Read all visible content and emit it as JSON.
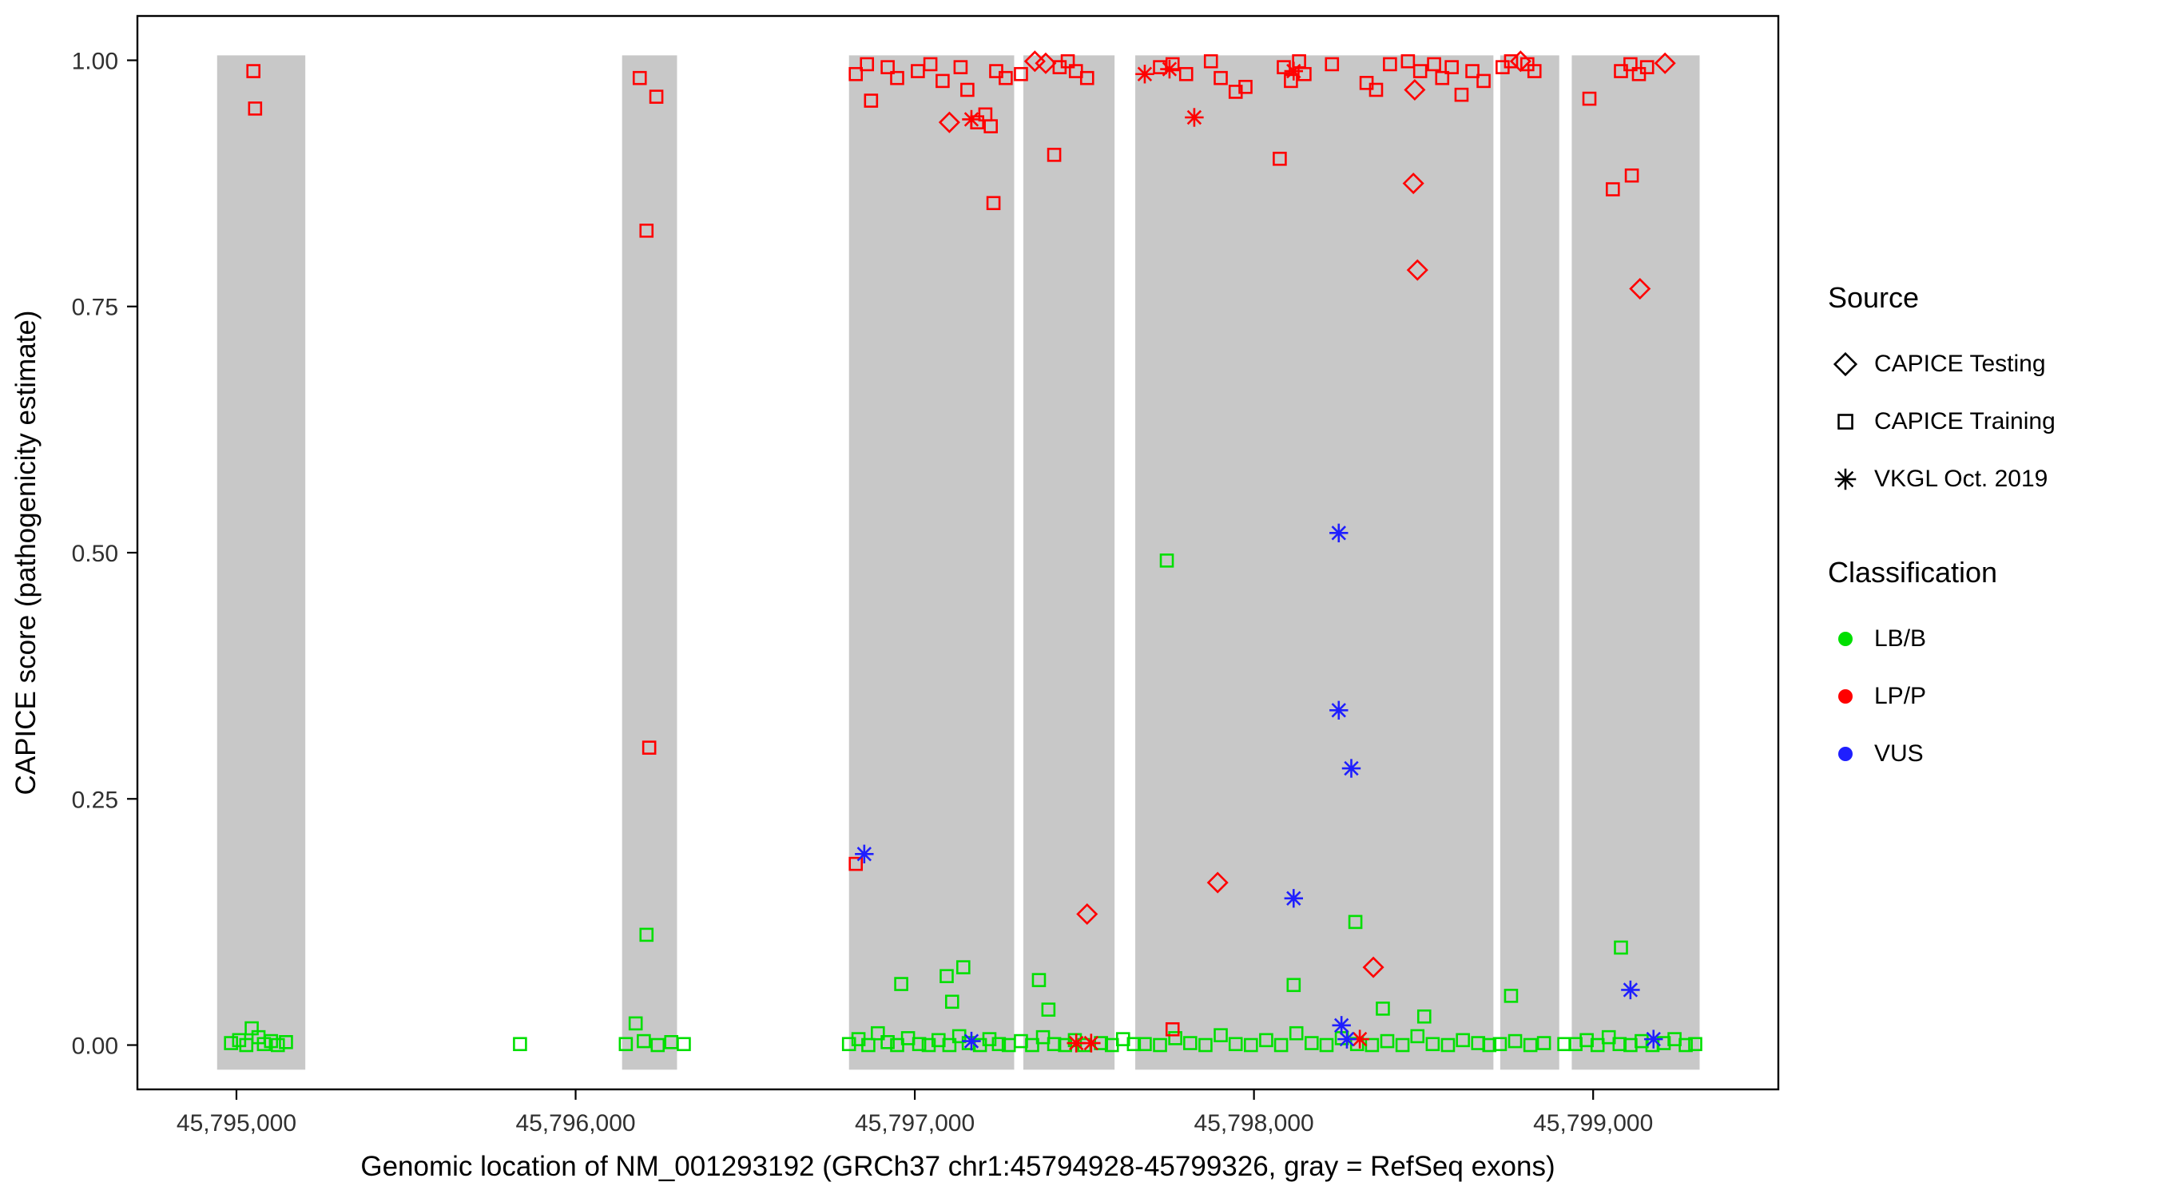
{
  "figure": {
    "background": "#FFFFFF",
    "panel_border_color": "#000000",
    "exon_band_color": "#C8C8C8"
  },
  "legend": {
    "source": {
      "title": "Source",
      "items": [
        {
          "label": "CAPICE Testing",
          "shape": "diamond",
          "icon": "diamond-icon",
          "color": "#000000"
        },
        {
          "label": "CAPICE Training",
          "shape": "square",
          "icon": "square-icon",
          "color": "#000000"
        },
        {
          "label": "VKGL Oct. 2019",
          "shape": "asterisk",
          "icon": "asterisk-icon",
          "color": "#000000"
        }
      ]
    },
    "classification": {
      "title": "Classification",
      "items": [
        {
          "label": "LB/B",
          "icon": "dot-icon",
          "color": "#00DF00"
        },
        {
          "label": "LP/P",
          "icon": "dot-icon",
          "color": "#FF0000"
        },
        {
          "label": "VUS",
          "icon": "dot-icon",
          "color": "#1F1FFF"
        }
      ]
    }
  },
  "chart_data": {
    "type": "scatter",
    "title": "",
    "xlabel": "Genomic location of NM_001293192 (GRCh37 chr1:45794928-45799326, gray = RefSeq exons)",
    "ylabel": "CAPICE score (pathogenicity estimate)",
    "xlim": [
      45794708,
      45799546
    ],
    "ylim": [
      -0.045,
      1.045
    ],
    "grid": false,
    "legend_position": "right",
    "x_ticks": {
      "values": [
        45795000,
        45796000,
        45797000,
        45798000,
        45799000
      ],
      "labels": [
        "45,795,000",
        "45,796,000",
        "45,797,000",
        "45,798,000",
        "45,799,000"
      ]
    },
    "y_ticks": {
      "values": [
        0.0,
        0.25,
        0.5,
        0.75,
        1.0
      ],
      "labels": [
        "0.00",
        "0.25",
        "0.50",
        "0.75",
        "1.00"
      ]
    },
    "exon_band": {
      "ymin": -0.025,
      "ymax": 1.005,
      "color": "#C8C8C8"
    },
    "exons": [
      [
        45794943,
        45795203
      ],
      [
        45796137,
        45796299
      ],
      [
        45796806,
        45797293
      ],
      [
        45797320,
        45797589
      ],
      [
        45797650,
        45798706
      ],
      [
        45798726,
        45798900
      ],
      [
        45798937,
        45799314
      ]
    ],
    "series": [
      {
        "name": "LB/B CAPICE Training",
        "classification": "LB/B",
        "source": "CAPICE Training",
        "shape": "square",
        "color": "#00DF00",
        "points": [
          [
            45794984,
            0.002
          ],
          [
            45795008,
            0.005
          ],
          [
            45795029,
            0.0
          ],
          [
            45795045,
            0.017
          ],
          [
            45795065,
            0.008
          ],
          [
            45795081,
            0.001
          ],
          [
            45795102,
            0.004
          ],
          [
            45795122,
            0.0
          ],
          [
            45795146,
            0.003
          ],
          [
            45795836,
            0.001
          ],
          [
            45796209,
            0.112
          ],
          [
            45796177,
            0.022
          ],
          [
            45796148,
            0.001
          ],
          [
            45796201,
            0.004
          ],
          [
            45796242,
            0.0
          ],
          [
            45796282,
            0.003
          ],
          [
            45796319,
            0.001
          ],
          [
            45796960,
            0.062
          ],
          [
            45797094,
            0.07
          ],
          [
            45797143,
            0.079
          ],
          [
            45797110,
            0.044
          ],
          [
            45796806,
            0.001
          ],
          [
            45796834,
            0.006
          ],
          [
            45796863,
            0.0
          ],
          [
            45796891,
            0.012
          ],
          [
            45796920,
            0.003
          ],
          [
            45796948,
            0.0
          ],
          [
            45796980,
            0.007
          ],
          [
            45797013,
            0.001
          ],
          [
            45797041,
            0.0
          ],
          [
            45797070,
            0.005
          ],
          [
            45797102,
            0.0
          ],
          [
            45797131,
            0.009
          ],
          [
            45797159,
            0.002
          ],
          [
            45797192,
            0.0
          ],
          [
            45797220,
            0.006
          ],
          [
            45797248,
            0.001
          ],
          [
            45797277,
            0.0
          ],
          [
            45797366,
            0.066
          ],
          [
            45797394,
            0.036
          ],
          [
            45797313,
            0.004
          ],
          [
            45797346,
            0.0
          ],
          [
            45797378,
            0.008
          ],
          [
            45797411,
            0.001
          ],
          [
            45797443,
            0.0
          ],
          [
            45797472,
            0.005
          ],
          [
            45797500,
            0.0
          ],
          [
            45797549,
            0.002
          ],
          [
            45797581,
            0.0
          ],
          [
            45797614,
            0.006
          ],
          [
            45797646,
            0.001
          ],
          [
            45797743,
            0.492
          ],
          [
            45798299,
            0.125
          ],
          [
            45798117,
            0.061
          ],
          [
            45798380,
            0.037
          ],
          [
            45798502,
            0.029
          ],
          [
            45797678,
            0.001
          ],
          [
            45797723,
            0.0
          ],
          [
            45797768,
            0.007
          ],
          [
            45797812,
            0.002
          ],
          [
            45797857,
            0.0
          ],
          [
            45797902,
            0.01
          ],
          [
            45797946,
            0.001
          ],
          [
            45797991,
            0.0
          ],
          [
            45798036,
            0.005
          ],
          [
            45798080,
            0.0
          ],
          [
            45798125,
            0.012
          ],
          [
            45798170,
            0.002
          ],
          [
            45798214,
            0.0
          ],
          [
            45798259,
            0.007
          ],
          [
            45798304,
            0.001
          ],
          [
            45798348,
            0.0
          ],
          [
            45798393,
            0.004
          ],
          [
            45798438,
            0.0
          ],
          [
            45798482,
            0.009
          ],
          [
            45798527,
            0.001
          ],
          [
            45798572,
            0.0
          ],
          [
            45798616,
            0.005
          ],
          [
            45798661,
            0.002
          ],
          [
            45798694,
            0.0
          ],
          [
            45798758,
            0.05
          ],
          [
            45798725,
            0.001
          ],
          [
            45798770,
            0.004
          ],
          [
            45798815,
            0.0
          ],
          [
            45798855,
            0.002
          ],
          [
            45798915,
            0.001
          ],
          [
            45799082,
            0.099
          ],
          [
            45798948,
            0.001
          ],
          [
            45798981,
            0.005
          ],
          [
            45799013,
            0.0
          ],
          [
            45799046,
            0.008
          ],
          [
            45799078,
            0.001
          ],
          [
            45799110,
            0.0
          ],
          [
            45799143,
            0.004
          ],
          [
            45799175,
            0.0
          ],
          [
            45799208,
            0.002
          ],
          [
            45799240,
            0.006
          ],
          [
            45799273,
            0.0
          ],
          [
            45799301,
            0.001
          ]
        ]
      },
      {
        "name": "LP/P CAPICE Training",
        "classification": "LP/P",
        "source": "CAPICE Training",
        "shape": "square",
        "color": "#FF0000",
        "points": [
          [
            45795050,
            0.989
          ],
          [
            45795055,
            0.951
          ],
          [
            45796189,
            0.982
          ],
          [
            45796238,
            0.963
          ],
          [
            45796209,
            0.827
          ],
          [
            45796217,
            0.302
          ],
          [
            45796826,
            0.986
          ],
          [
            45796859,
            0.996
          ],
          [
            45796871,
            0.959
          ],
          [
            45796920,
            0.993
          ],
          [
            45796948,
            0.982
          ],
          [
            45797009,
            0.989
          ],
          [
            45797046,
            0.996
          ],
          [
            45797082,
            0.979
          ],
          [
            45797135,
            0.993
          ],
          [
            45797155,
            0.97
          ],
          [
            45797184,
            0.937
          ],
          [
            45797208,
            0.945
          ],
          [
            45797224,
            0.933
          ],
          [
            45797240,
            0.989
          ],
          [
            45797268,
            0.982
          ],
          [
            45797232,
            0.855
          ],
          [
            45796826,
            0.184
          ],
          [
            45797313,
            0.986
          ],
          [
            45797427,
            0.993
          ],
          [
            45797451,
            0.999
          ],
          [
            45797475,
            0.989
          ],
          [
            45797508,
            0.982
          ],
          [
            45797411,
            0.904
          ],
          [
            45797723,
            0.993
          ],
          [
            45797760,
            0.996
          ],
          [
            45797800,
            0.986
          ],
          [
            45797873,
            0.999
          ],
          [
            45797902,
            0.982
          ],
          [
            45797946,
            0.968
          ],
          [
            45797975,
            0.973
          ],
          [
            45798076,
            0.9
          ],
          [
            45798088,
            0.993
          ],
          [
            45798109,
            0.979
          ],
          [
            45798133,
            0.999
          ],
          [
            45798149,
            0.986
          ],
          [
            45798230,
            0.996
          ],
          [
            45798332,
            0.977
          ],
          [
            45798360,
            0.97
          ],
          [
            45798401,
            0.996
          ],
          [
            45798454,
            0.999
          ],
          [
            45798490,
            0.989
          ],
          [
            45798531,
            0.996
          ],
          [
            45798555,
            0.982
          ],
          [
            45798583,
            0.993
          ],
          [
            45798612,
            0.965
          ],
          [
            45798644,
            0.989
          ],
          [
            45798677,
            0.979
          ],
          [
            45797760,
            0.016
          ],
          [
            45798733,
            0.993
          ],
          [
            45798758,
            0.999
          ],
          [
            45798806,
            0.996
          ],
          [
            45798827,
            0.989
          ],
          [
            45798989,
            0.961
          ],
          [
            45799082,
            0.989
          ],
          [
            45799110,
            0.996
          ],
          [
            45799135,
            0.986
          ],
          [
            45799159,
            0.993
          ],
          [
            45799058,
            0.869
          ],
          [
            45799114,
            0.883
          ]
        ]
      },
      {
        "name": "LP/P CAPICE Testing",
        "classification": "LP/P",
        "source": "CAPICE Testing",
        "shape": "diamond",
        "color": "#FF0000",
        "points": [
          [
            45797102,
            0.937
          ],
          [
            45797354,
            0.999
          ],
          [
            45797386,
            0.997
          ],
          [
            45798474,
            0.97
          ],
          [
            45798470,
            0.875
          ],
          [
            45798482,
            0.787
          ],
          [
            45797893,
            0.165
          ],
          [
            45797508,
            0.133
          ],
          [
            45798352,
            0.079
          ],
          [
            45798786,
            0.999
          ],
          [
            45799212,
            0.997
          ],
          [
            45799138,
            0.768
          ]
        ]
      },
      {
        "name": "LP/P VKGL Oct. 2019",
        "classification": "LP/P",
        "source": "VKGL Oct. 2019",
        "shape": "asterisk",
        "color": "#FF0000",
        "points": [
          [
            45797167,
            0.94
          ],
          [
            45797678,
            0.986
          ],
          [
            45797751,
            0.991
          ],
          [
            45797824,
            0.942
          ],
          [
            45798117,
            0.989
          ],
          [
            45797476,
            0.002
          ],
          [
            45797520,
            0.002
          ],
          [
            45798312,
            0.006
          ]
        ]
      },
      {
        "name": "VUS VKGL Oct. 2019",
        "classification": "VUS",
        "source": "VKGL Oct. 2019",
        "shape": "asterisk",
        "color": "#1F1FFF",
        "points": [
          [
            45796851,
            0.194
          ],
          [
            45798250,
            0.52
          ],
          [
            45798250,
            0.34
          ],
          [
            45798287,
            0.281
          ],
          [
            45798117,
            0.149
          ],
          [
            45798258,
            0.02
          ],
          [
            45798274,
            0.006
          ],
          [
            45797167,
            0.004
          ],
          [
            45799110,
            0.056
          ],
          [
            45799178,
            0.006
          ]
        ]
      }
    ]
  }
}
